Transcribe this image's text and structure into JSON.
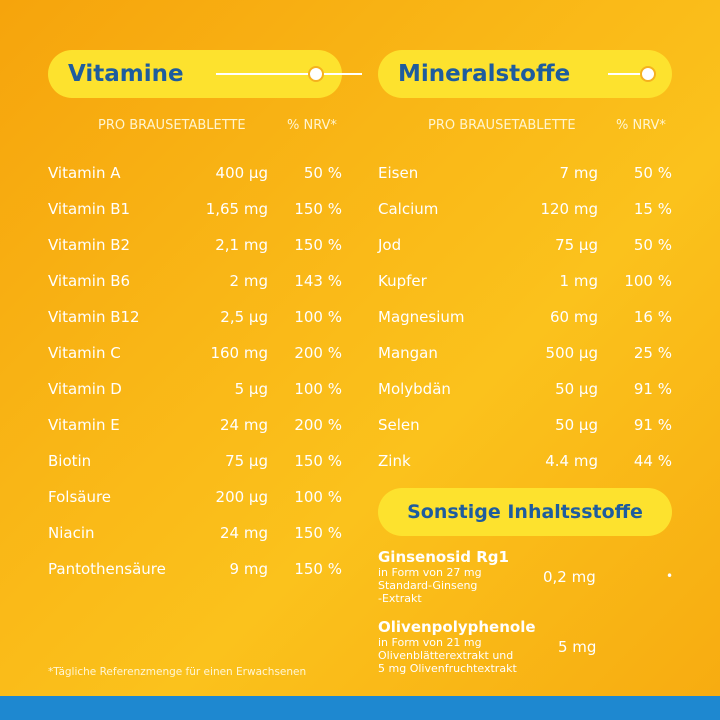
{
  "vitamins": {
    "title": "Vitamine",
    "col_amount": "PRO BRAUSETABLETTE",
    "col_nrv": "% NRV*",
    "rows": [
      {
        "name": "Vitamin A",
        "amount": "400 µg",
        "nrv": "50 %"
      },
      {
        "name": "Vitamin B1",
        "amount": "1,65 mg",
        "nrv": "150 %"
      },
      {
        "name": "Vitamin B2",
        "amount": "2,1 mg",
        "nrv": "150 %"
      },
      {
        "name": "Vitamin B6",
        "amount": "2 mg",
        "nrv": "143 %"
      },
      {
        "name": "Vitamin B12",
        "amount": "2,5 µg",
        "nrv": "100 %"
      },
      {
        "name": "Vitamin C",
        "amount": "160 mg",
        "nrv": "200 %"
      },
      {
        "name": "Vitamin D",
        "amount": "5 µg",
        "nrv": "100 %"
      },
      {
        "name": "Vitamin E",
        "amount": "24 mg",
        "nrv": "200 %"
      },
      {
        "name": "Biotin",
        "amount": "75 µg",
        "nrv": "150 %"
      },
      {
        "name": "Folsäure",
        "amount": "200 µg",
        "nrv": "100 %"
      },
      {
        "name": "Niacin",
        "amount": "24 mg",
        "nrv": "150 %"
      },
      {
        "name": "Pantothensäure",
        "amount": "9 mg",
        "nrv": "150 %"
      }
    ]
  },
  "minerals": {
    "title": "Mineralstoffe",
    "col_amount": "PRO BRAUSETABLETTE",
    "col_nrv": "% NRV*",
    "rows": [
      {
        "name": "Eisen",
        "amount": "7 mg",
        "nrv": "50 %"
      },
      {
        "name": "Calcium",
        "amount": "120 mg",
        "nrv": "15 %"
      },
      {
        "name": "Jod",
        "amount": "75 µg",
        "nrv": "50 %"
      },
      {
        "name": "Kupfer",
        "amount": "1 mg",
        "nrv": "100 %"
      },
      {
        "name": "Magnesium",
        "amount": "60 mg",
        "nrv": "16 %"
      },
      {
        "name": "Mangan",
        "amount": "500 µg",
        "nrv": "25 %"
      },
      {
        "name": "Molybdän",
        "amount": "50 µg",
        "nrv": "91 %"
      },
      {
        "name": "Selen",
        "amount": "50 µg",
        "nrv": "91 %"
      },
      {
        "name": "Zink",
        "amount": "4.4 mg",
        "nrv": "44 %"
      }
    ]
  },
  "other": {
    "title": "Sonstige Inhaltsstoffe",
    "items": [
      {
        "name": "Ginsenosid Rg1",
        "desc1": "in Form von 27 mg",
        "desc2": "Standard-Ginseng",
        "desc3": "-Extrakt",
        "amount": "0,2 mg",
        "nrv": "•"
      },
      {
        "name": "Olivenpolyphenole",
        "desc1": "in Form von 21 mg",
        "desc2": "Olivenblätterextrakt und",
        "desc3": "5 mg Olivenfruchtextrakt",
        "amount": "5 mg",
        "nrv": ""
      }
    ]
  },
  "footnote": "*Tägliche Referenzmenge für einen Erwachsenen",
  "colors": {
    "pill": "#fde22e",
    "title": "#1e5c9e",
    "stripe": "#1e88d0"
  }
}
